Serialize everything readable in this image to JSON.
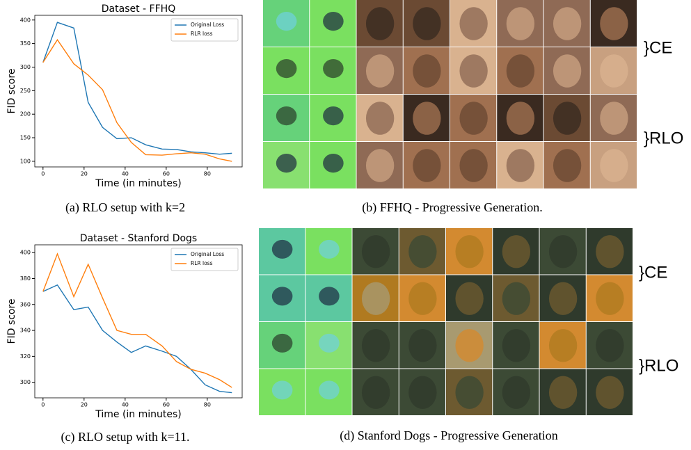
{
  "chart_data": [
    {
      "type": "line",
      "title": "Dataset - FFHQ",
      "xlabel": "Time (in minutes)",
      "ylabel": "FID score",
      "caption": "(a) RLO setup with k=2",
      "x": [
        0,
        7,
        15,
        22,
        29,
        36,
        43,
        50,
        58,
        65,
        72,
        79,
        86,
        92
      ],
      "series": [
        {
          "name": "Original Loss",
          "color": "#1f77b4",
          "values": [
            310,
            395,
            383,
            225,
            172,
            148,
            150,
            135,
            126,
            125,
            120,
            118,
            115,
            117
          ]
        },
        {
          "name": "RLR loss",
          "color": "#ff7f0e",
          "values": [
            310,
            358,
            307,
            283,
            252,
            182,
            140,
            114,
            113,
            116,
            118,
            115,
            105,
            100
          ]
        }
      ],
      "xlim": [
        -4,
        97
      ],
      "ylim": [
        88,
        410
      ],
      "xticks": [
        0,
        20,
        40,
        60,
        80
      ],
      "yticks": [
        100,
        150,
        200,
        250,
        300,
        350,
        400
      ],
      "legend": "upper right",
      "grid": false
    },
    {
      "type": "line",
      "title": "Dataset - Stanford Dogs",
      "xlabel": "Time (in minutes)",
      "ylabel": "FID score",
      "caption": "(c) RLO setup with k=11.",
      "x": [
        0,
        7,
        15,
        22,
        29,
        36,
        43,
        50,
        58,
        65,
        72,
        79,
        86,
        92
      ],
      "series": [
        {
          "name": "Original Loss",
          "color": "#1f77b4",
          "values": [
            370,
            375,
            356,
            358,
            340,
            331,
            323,
            328,
            324,
            320,
            310,
            298,
            293,
            292
          ]
        },
        {
          "name": "RLR loss",
          "color": "#ff7f0e",
          "values": [
            370,
            399,
            366,
            391,
            365,
            340,
            337,
            337,
            328,
            316,
            310,
            307,
            302,
            296
          ]
        }
      ],
      "xlim": [
        -4,
        97
      ],
      "ylim": [
        288,
        406
      ],
      "xticks": [
        0,
        20,
        40,
        60,
        80
      ],
      "yticks": [
        300,
        320,
        340,
        360,
        380,
        400
      ],
      "legend": "upper right",
      "grid": false
    }
  ],
  "image_grids": [
    {
      "caption": "(b) FFHQ - Progressive Generation.",
      "row_labels": [
        "}CE",
        "}RLO"
      ]
    },
    {
      "caption": "(d) Stanford Dogs - Progressive Generation",
      "row_labels": [
        "}CE",
        "}RLO"
      ]
    }
  ]
}
